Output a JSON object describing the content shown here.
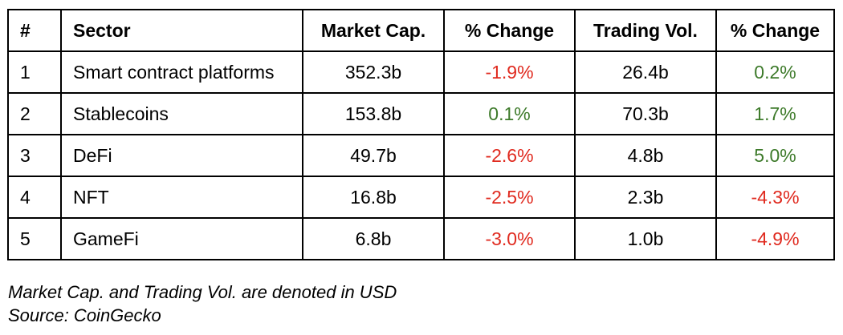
{
  "table": {
    "headers": {
      "num": "#",
      "sector": "Sector",
      "market_cap": "Market Cap.",
      "pct_change_1": "% Change",
      "trading_vol": "Trading Vol.",
      "pct_change_2": "% Change"
    },
    "rows": [
      {
        "num": "1",
        "sector": "Smart contract platforms",
        "market_cap": "352.3b",
        "mcap_change": "-1.9%",
        "trading_vol": "26.4b",
        "vol_change": "0.2%"
      },
      {
        "num": "2",
        "sector": "Stablecoins",
        "market_cap": "153.8b",
        "mcap_change": "0.1%",
        "trading_vol": "70.3b",
        "vol_change": "1.7%"
      },
      {
        "num": "3",
        "sector": "DeFi",
        "market_cap": "49.7b",
        "mcap_change": "-2.6%",
        "trading_vol": "4.8b",
        "vol_change": "5.0%"
      },
      {
        "num": "4",
        "sector": "NFT",
        "market_cap": "16.8b",
        "mcap_change": "-2.5%",
        "trading_vol": "2.3b",
        "vol_change": "-4.3%"
      },
      {
        "num": "5",
        "sector": "GameFi",
        "market_cap": "6.8b",
        "mcap_change": "-3.0%",
        "trading_vol": "1.0b",
        "vol_change": "-4.9%"
      }
    ]
  },
  "footnotes": {
    "denomination": "Market Cap. and Trading Vol. are denoted in USD",
    "source": "Source: CoinGecko"
  },
  "colors": {
    "negative": "#e02a1f",
    "positive": "#3d7a2a"
  }
}
